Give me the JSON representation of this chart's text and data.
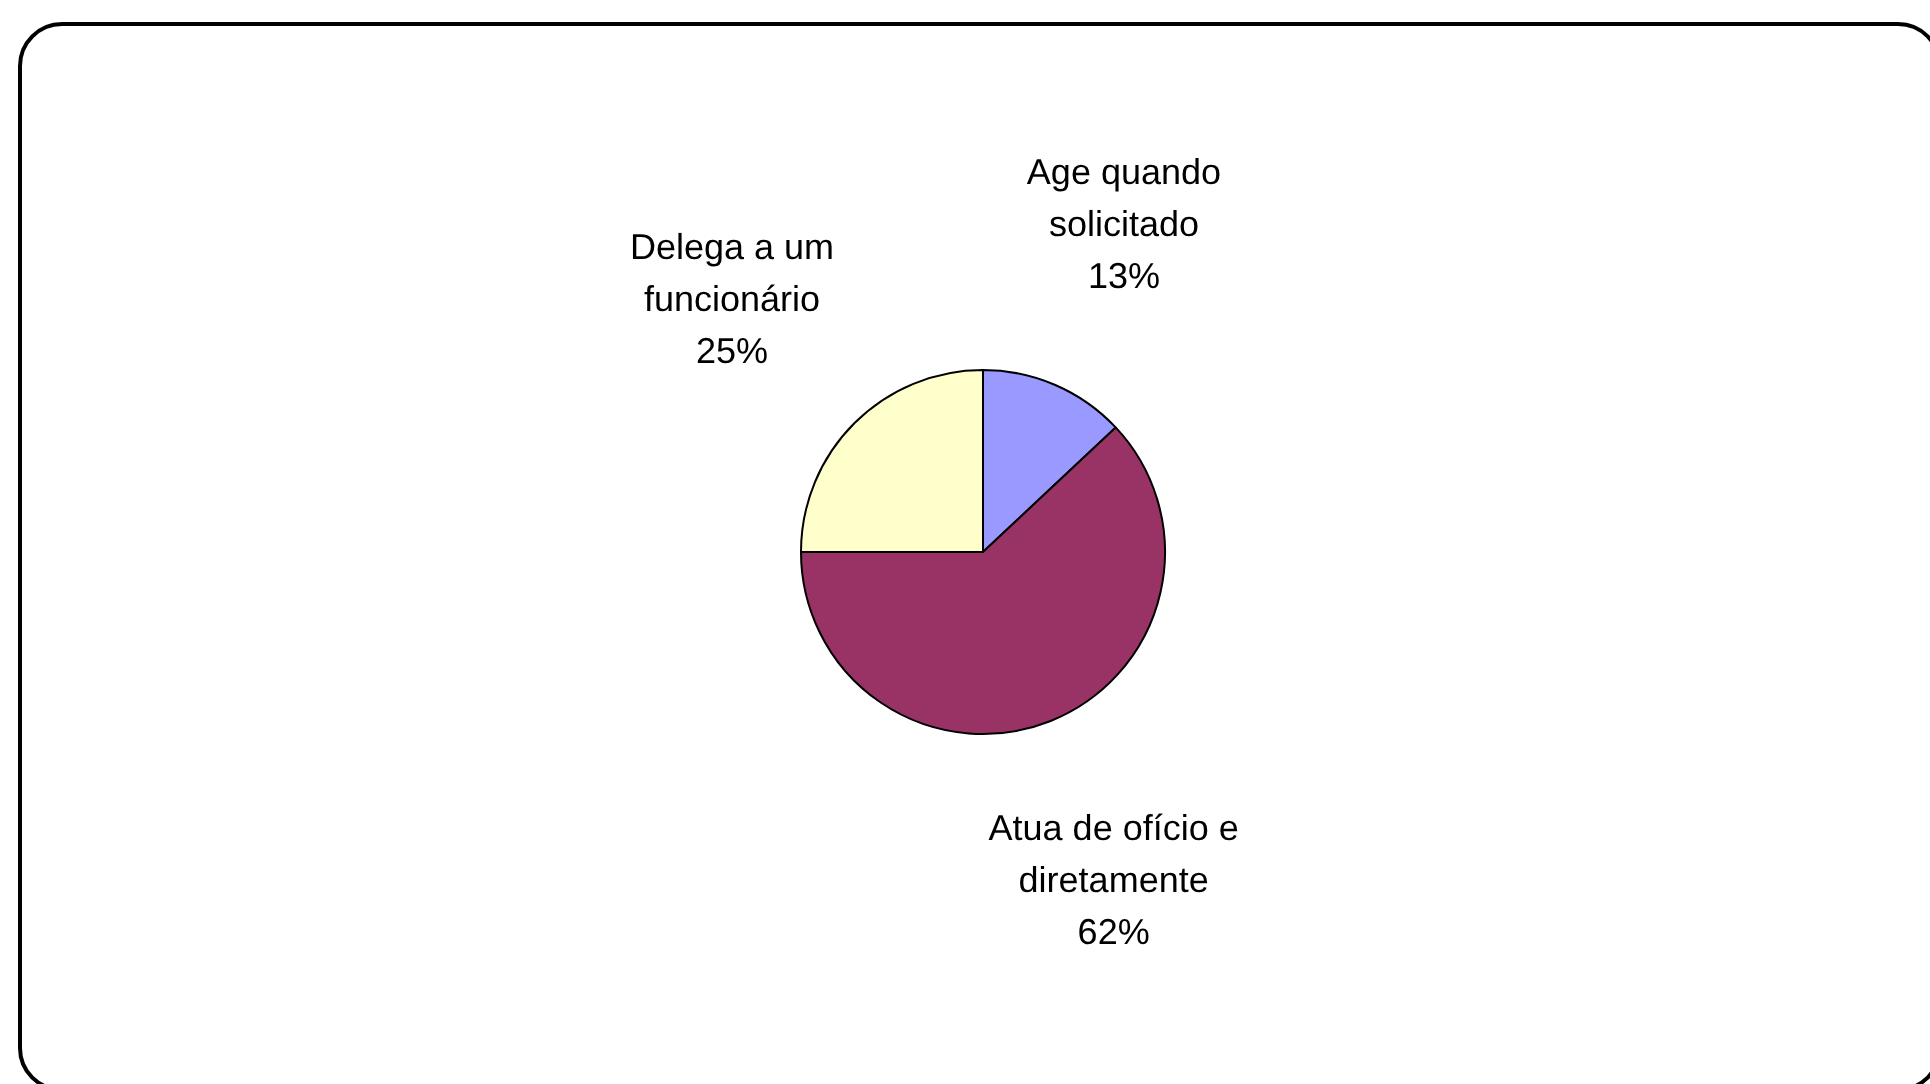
{
  "chart_data": {
    "type": "pie",
    "categories": [
      "Age quando solicitado",
      "Atua de ofício e diretamente",
      "Delega a um funcionário"
    ],
    "values": [
      13,
      62,
      25
    ],
    "value_labels": [
      "13%",
      "62%",
      "25%"
    ],
    "colors": [
      "#9999ff",
      "#993366",
      "#ffffcc"
    ],
    "legend": false
  }
}
